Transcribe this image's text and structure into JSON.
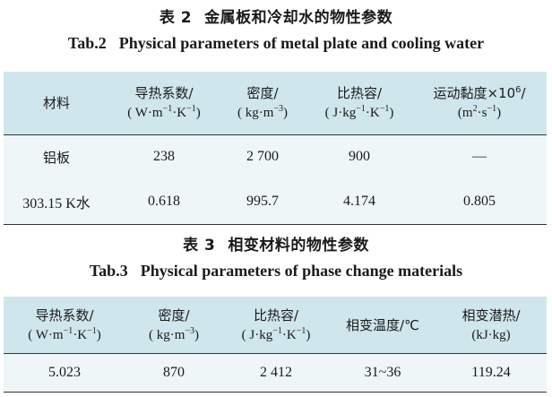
{
  "table2": {
    "caption_cn_num": "表 2",
    "caption_cn": "金属板和冷却水的物性参数",
    "caption_en_num": "Tab.2",
    "caption_en": "Physical parameters of metal plate and cooling water",
    "headers": [
      {
        "l1": "材料",
        "l2": ""
      },
      {
        "l1": "导热系数/",
        "l2_html": "( W·m<sup>−1</sup>·K<sup>−1</sup>)"
      },
      {
        "l1": "密度/",
        "l2_html": "( kg·m<sup>−3</sup>)"
      },
      {
        "l1": "比热容/",
        "l2_html": "( J·kg<sup>−1</sup>·K<sup>−1</sup>)"
      },
      {
        "l1_html": "运动黏度×10<sup>6</sup>/",
        "l2_html": "(m<sup>2</sup>·s<sup>−1</sup>)"
      }
    ],
    "rows": [
      [
        "铝板",
        "238",
        "2 700",
        "900",
        "—"
      ],
      [
        "303.15 K水",
        "0.618",
        "995.7",
        "4.174",
        "0.805"
      ]
    ]
  },
  "table3": {
    "caption_cn_num": "表 3",
    "caption_cn": "相变材料的物性参数",
    "caption_en_num": "Tab.3",
    "caption_en": "Physical parameters of phase change materials",
    "headers": [
      {
        "l1": "导热系数/",
        "l2_html": "( W·m<sup>−1</sup>·K<sup>−1</sup>)"
      },
      {
        "l1": "密度/",
        "l2_html": "( kg·m<sup>−3</sup>)"
      },
      {
        "l1": "比热容/",
        "l2_html": "( J·kg<sup>−1</sup>·K<sup>−1</sup>)"
      },
      {
        "l1": "相变温度/℃",
        "l2": ""
      },
      {
        "l1": "相变潜热/",
        "l2": "(kJ·kg)"
      }
    ],
    "rows": [
      [
        "5.023",
        "870",
        "2 412",
        "31~36",
        "119.24"
      ]
    ]
  }
}
